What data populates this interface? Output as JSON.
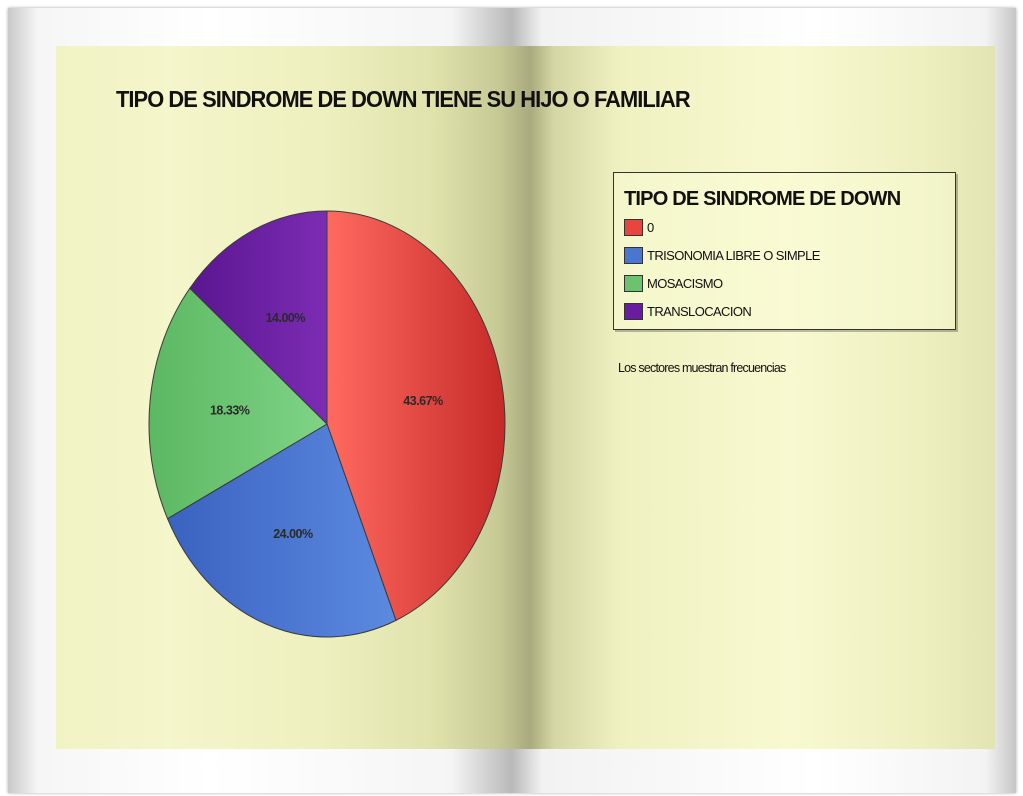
{
  "chart_data": {
    "type": "pie",
    "title": "TIPO DE SINDROME DE DOWN TIENE SU HIJO O FAMILIAR",
    "legend_title": "TIPO DE SINDROME DE DOWN",
    "legend_position": "top-right",
    "note": "Los sectores muestran frecuencias",
    "categories": [
      "0",
      "TRISONOMIA LIBRE O SIMPLE",
      "MOSACISMO",
      "TRANSLOCACION"
    ],
    "values": [
      43.67,
      24.0,
      18.33,
      14.0
    ],
    "value_labels": [
      "43.67%",
      "24.00%",
      "18.33%",
      "14.00%"
    ],
    "colors": [
      "#e8453f",
      "#4a76cf",
      "#6cc36f",
      "#6a1c9e"
    ]
  }
}
